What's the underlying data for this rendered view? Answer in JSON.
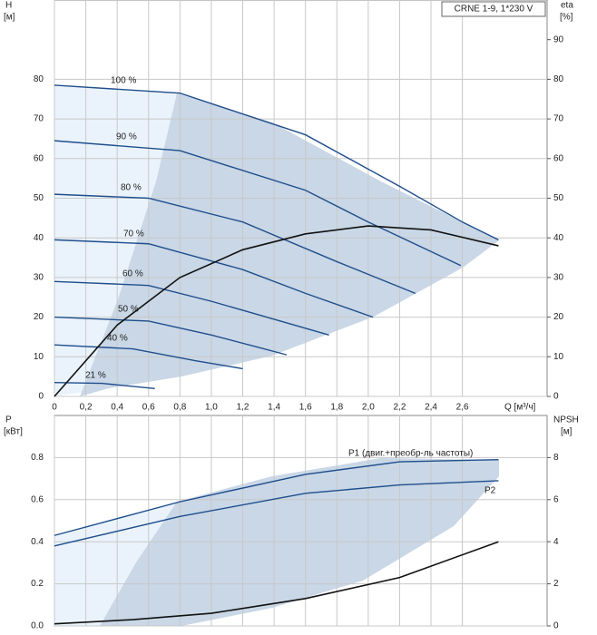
{
  "chart_data": [
    {
      "type": "line",
      "y_label": "H",
      "y_unit": "[м]",
      "y2_label": "eta",
      "y2_unit": "[%]",
      "legend_box": "CRNE 1-9, 1*230 V",
      "x_label": "Q [м³/ч]",
      "xlim": [
        0,
        3.14
      ],
      "ylim": [
        0,
        100
      ],
      "y2lim": [
        0,
        100
      ],
      "xticks": [
        0,
        {
          "value": 0.2,
          "label": "0,2"
        },
        {
          "value": 0.4,
          "label": "0,4"
        },
        {
          "value": 0.6,
          "label": "0,6"
        },
        {
          "value": 0.8,
          "label": "0,8"
        },
        {
          "value": 1.0,
          "label": "1,0"
        },
        {
          "value": 1.2,
          "label": "1,2"
        },
        {
          "value": 1.4,
          "label": "1,4"
        },
        {
          "value": 1.6,
          "label": "1,6"
        },
        {
          "value": 1.8,
          "label": "1,8"
        },
        {
          "value": 2.0,
          "label": "2,0"
        },
        {
          "value": 2.2,
          "label": "2,2"
        },
        {
          "value": 2.4,
          "label": "2,4"
        },
        {
          "value": 2.6,
          "label": "2,6"
        }
      ],
      "yticks": [
        0,
        10,
        20,
        30,
        40,
        50,
        60,
        70,
        80
      ],
      "y2ticks": [
        0,
        10,
        20,
        30,
        40,
        50,
        60,
        70,
        80,
        90
      ],
      "series": [
        {
          "name": "100 %",
          "color": "#1f4e8c",
          "x": [
            0,
            0.8,
            1.6,
            2.2,
            2.6,
            2.83
          ],
          "values": [
            78.5,
            76.5,
            66,
            53,
            44,
            39.5
          ]
        },
        {
          "name": "90 %",
          "color": "#1f4e8c",
          "x": [
            0,
            0.8,
            1.6,
            2.0,
            2.59
          ],
          "values": [
            64.5,
            62,
            52,
            44,
            33
          ]
        },
        {
          "name": "80 %",
          "color": "#1f4e8c",
          "x": [
            0,
            0.6,
            1.2,
            1.8,
            2.3
          ],
          "values": [
            51,
            50,
            44,
            34,
            26
          ]
        },
        {
          "name": "70 %",
          "color": "#1f4e8c",
          "x": [
            0,
            0.6,
            1.2,
            1.6,
            2.03
          ],
          "values": [
            39.5,
            38.5,
            32,
            26,
            20
          ]
        },
        {
          "name": "60 %",
          "color": "#1f4e8c",
          "x": [
            0,
            0.6,
            1.0,
            1.75
          ],
          "values": [
            29,
            28,
            24,
            15.5
          ]
        },
        {
          "name": "50 %",
          "color": "#1f4e8c",
          "x": [
            0,
            0.6,
            1.0,
            1.48
          ],
          "values": [
            20,
            19,
            15.5,
            10.5
          ]
        },
        {
          "name": "40 %",
          "color": "#1f4e8c",
          "x": [
            0,
            0.5,
            0.9,
            1.2
          ],
          "values": [
            13,
            12,
            9,
            7
          ]
        },
        {
          "name": "21 %",
          "color": "#1f4e8c",
          "x": [
            0,
            0.3,
            0.64
          ],
          "values": [
            3.5,
            3.3,
            2
          ]
        },
        {
          "color": "#111111",
          "axis": "y2",
          "x": [
            0,
            0.4,
            0.8,
            1.2,
            1.6,
            2.0,
            2.4,
            2.83
          ],
          "values": [
            0,
            18,
            30,
            37,
            41,
            43,
            42,
            38
          ]
        }
      ]
    },
    {
      "type": "line",
      "y_label": "P",
      "y_unit": "[кВт]",
      "y2_label": "NPSH",
      "y2_unit": "[м]",
      "xlim": [
        0,
        3.14
      ],
      "ylim": [
        0,
        1.0
      ],
      "y2lim": [
        0,
        10
      ],
      "yticks": [
        {
          "value": 0,
          "label": "0.0"
        },
        0.2,
        0.4,
        0.6,
        0.8
      ],
      "y2ticks": [
        0,
        2,
        4,
        6,
        8
      ],
      "series": [
        {
          "name": "P1 (двиг.+преобр-ль частоты)",
          "color": "#1f4e8c",
          "x": [
            0,
            0.8,
            1.6,
            2.2,
            2.83
          ],
          "values": [
            0.43,
            0.59,
            0.72,
            0.78,
            0.79
          ]
        },
        {
          "name": "P2",
          "color": "#1f4e8c",
          "x": [
            0,
            0.8,
            1.6,
            2.2,
            2.83
          ],
          "values": [
            0.38,
            0.52,
            0.63,
            0.67,
            0.69
          ]
        },
        {
          "color": "#111111",
          "axis": "y2",
          "x": [
            0,
            0.5,
            1.0,
            1.6,
            2.2,
            2.83
          ],
          "values": [
            0.1,
            0.3,
            0.6,
            1.3,
            2.3,
            4.0
          ]
        }
      ]
    }
  ]
}
